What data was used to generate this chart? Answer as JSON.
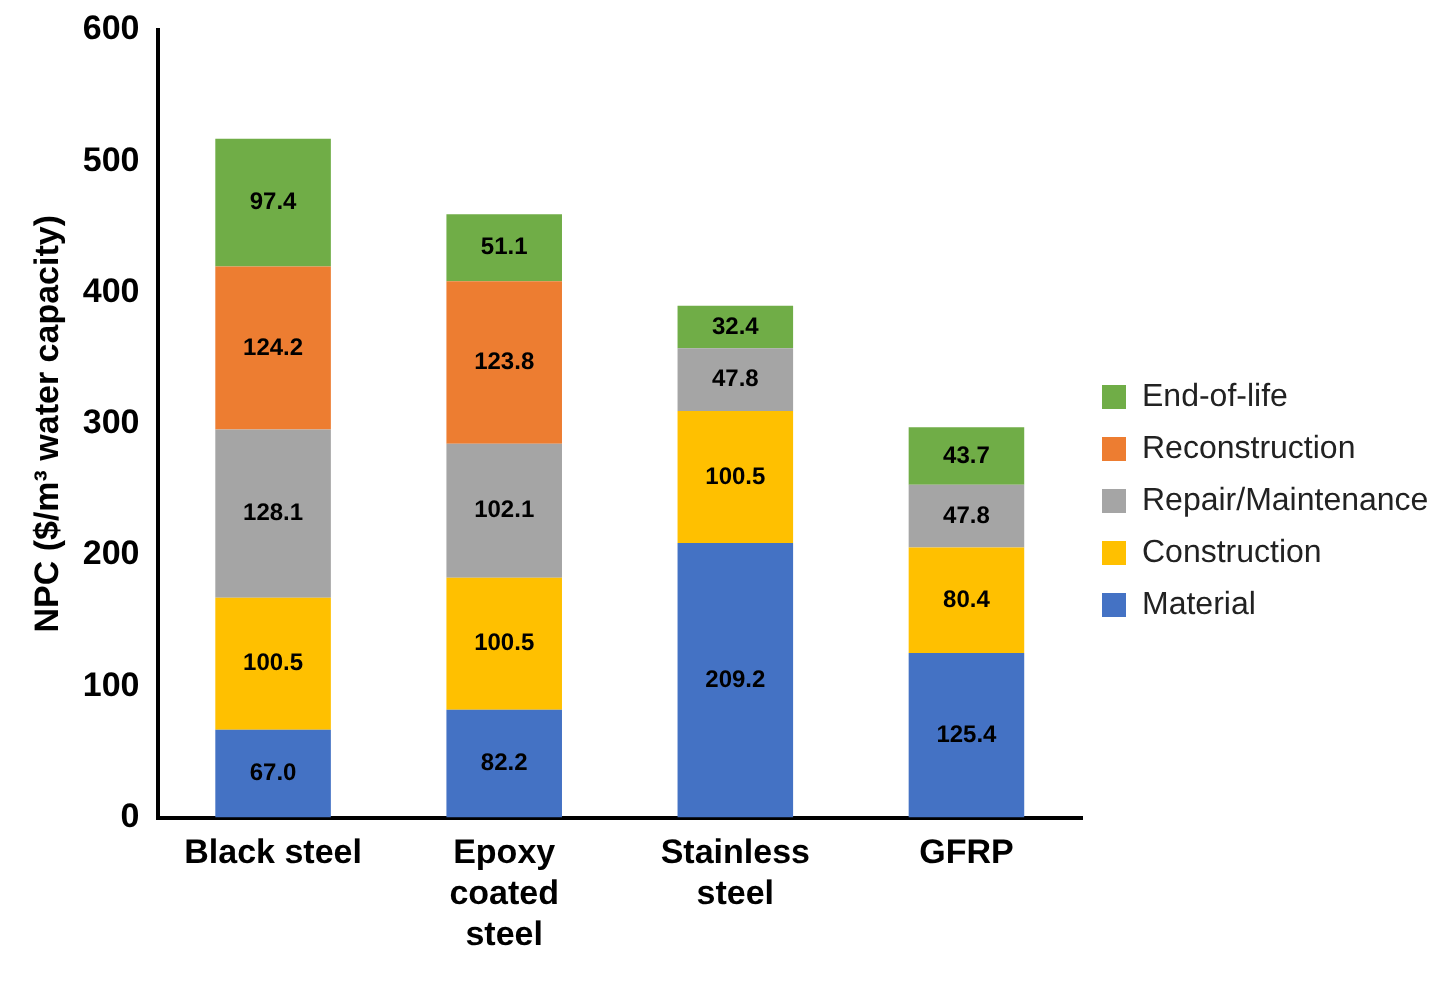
{
  "chart_data": {
    "type": "bar",
    "stacked": true,
    "ylabel": "NPC ($/m³ water capacity)",
    "categories": [
      "Black steel",
      "Epoxy\ncoated\nsteel",
      "Stainless\nsteel",
      "GFRP"
    ],
    "ylim": [
      0,
      600
    ],
    "yticks": [
      0,
      100,
      200,
      300,
      400,
      500,
      600
    ],
    "grid": false,
    "legend": "right",
    "series": [
      {
        "name": "Material",
        "color": "#4472c4",
        "values": [
          67.0,
          82.2,
          209.2,
          125.4
        ],
        "value_labels": [
          "67.0",
          "82.2",
          "209.2",
          "125.4"
        ]
      },
      {
        "name": "Construction",
        "color": "#ffc000",
        "values": [
          100.5,
          100.5,
          100.5,
          80.4
        ],
        "value_labels": [
          "100.5",
          "100.5",
          "100.5",
          "80.4"
        ]
      },
      {
        "name": "Repair/Maintenance",
        "color": "#a5a5a5",
        "values": [
          128.1,
          102.1,
          47.8,
          47.8
        ],
        "value_labels": [
          "128.1",
          "102.1",
          "47.8",
          "47.8"
        ]
      },
      {
        "name": "Reconstruction",
        "color": "#ed7d31",
        "values": [
          124.2,
          123.8,
          null,
          null
        ],
        "value_labels": [
          "124.2",
          "123.8",
          null,
          null
        ]
      },
      {
        "name": "End-of-life",
        "color": "#70ad47",
        "values": [
          97.4,
          51.1,
          32.4,
          43.7
        ],
        "value_labels": [
          "97.4",
          "51.1",
          "32.4",
          "43.7"
        ]
      }
    ]
  }
}
